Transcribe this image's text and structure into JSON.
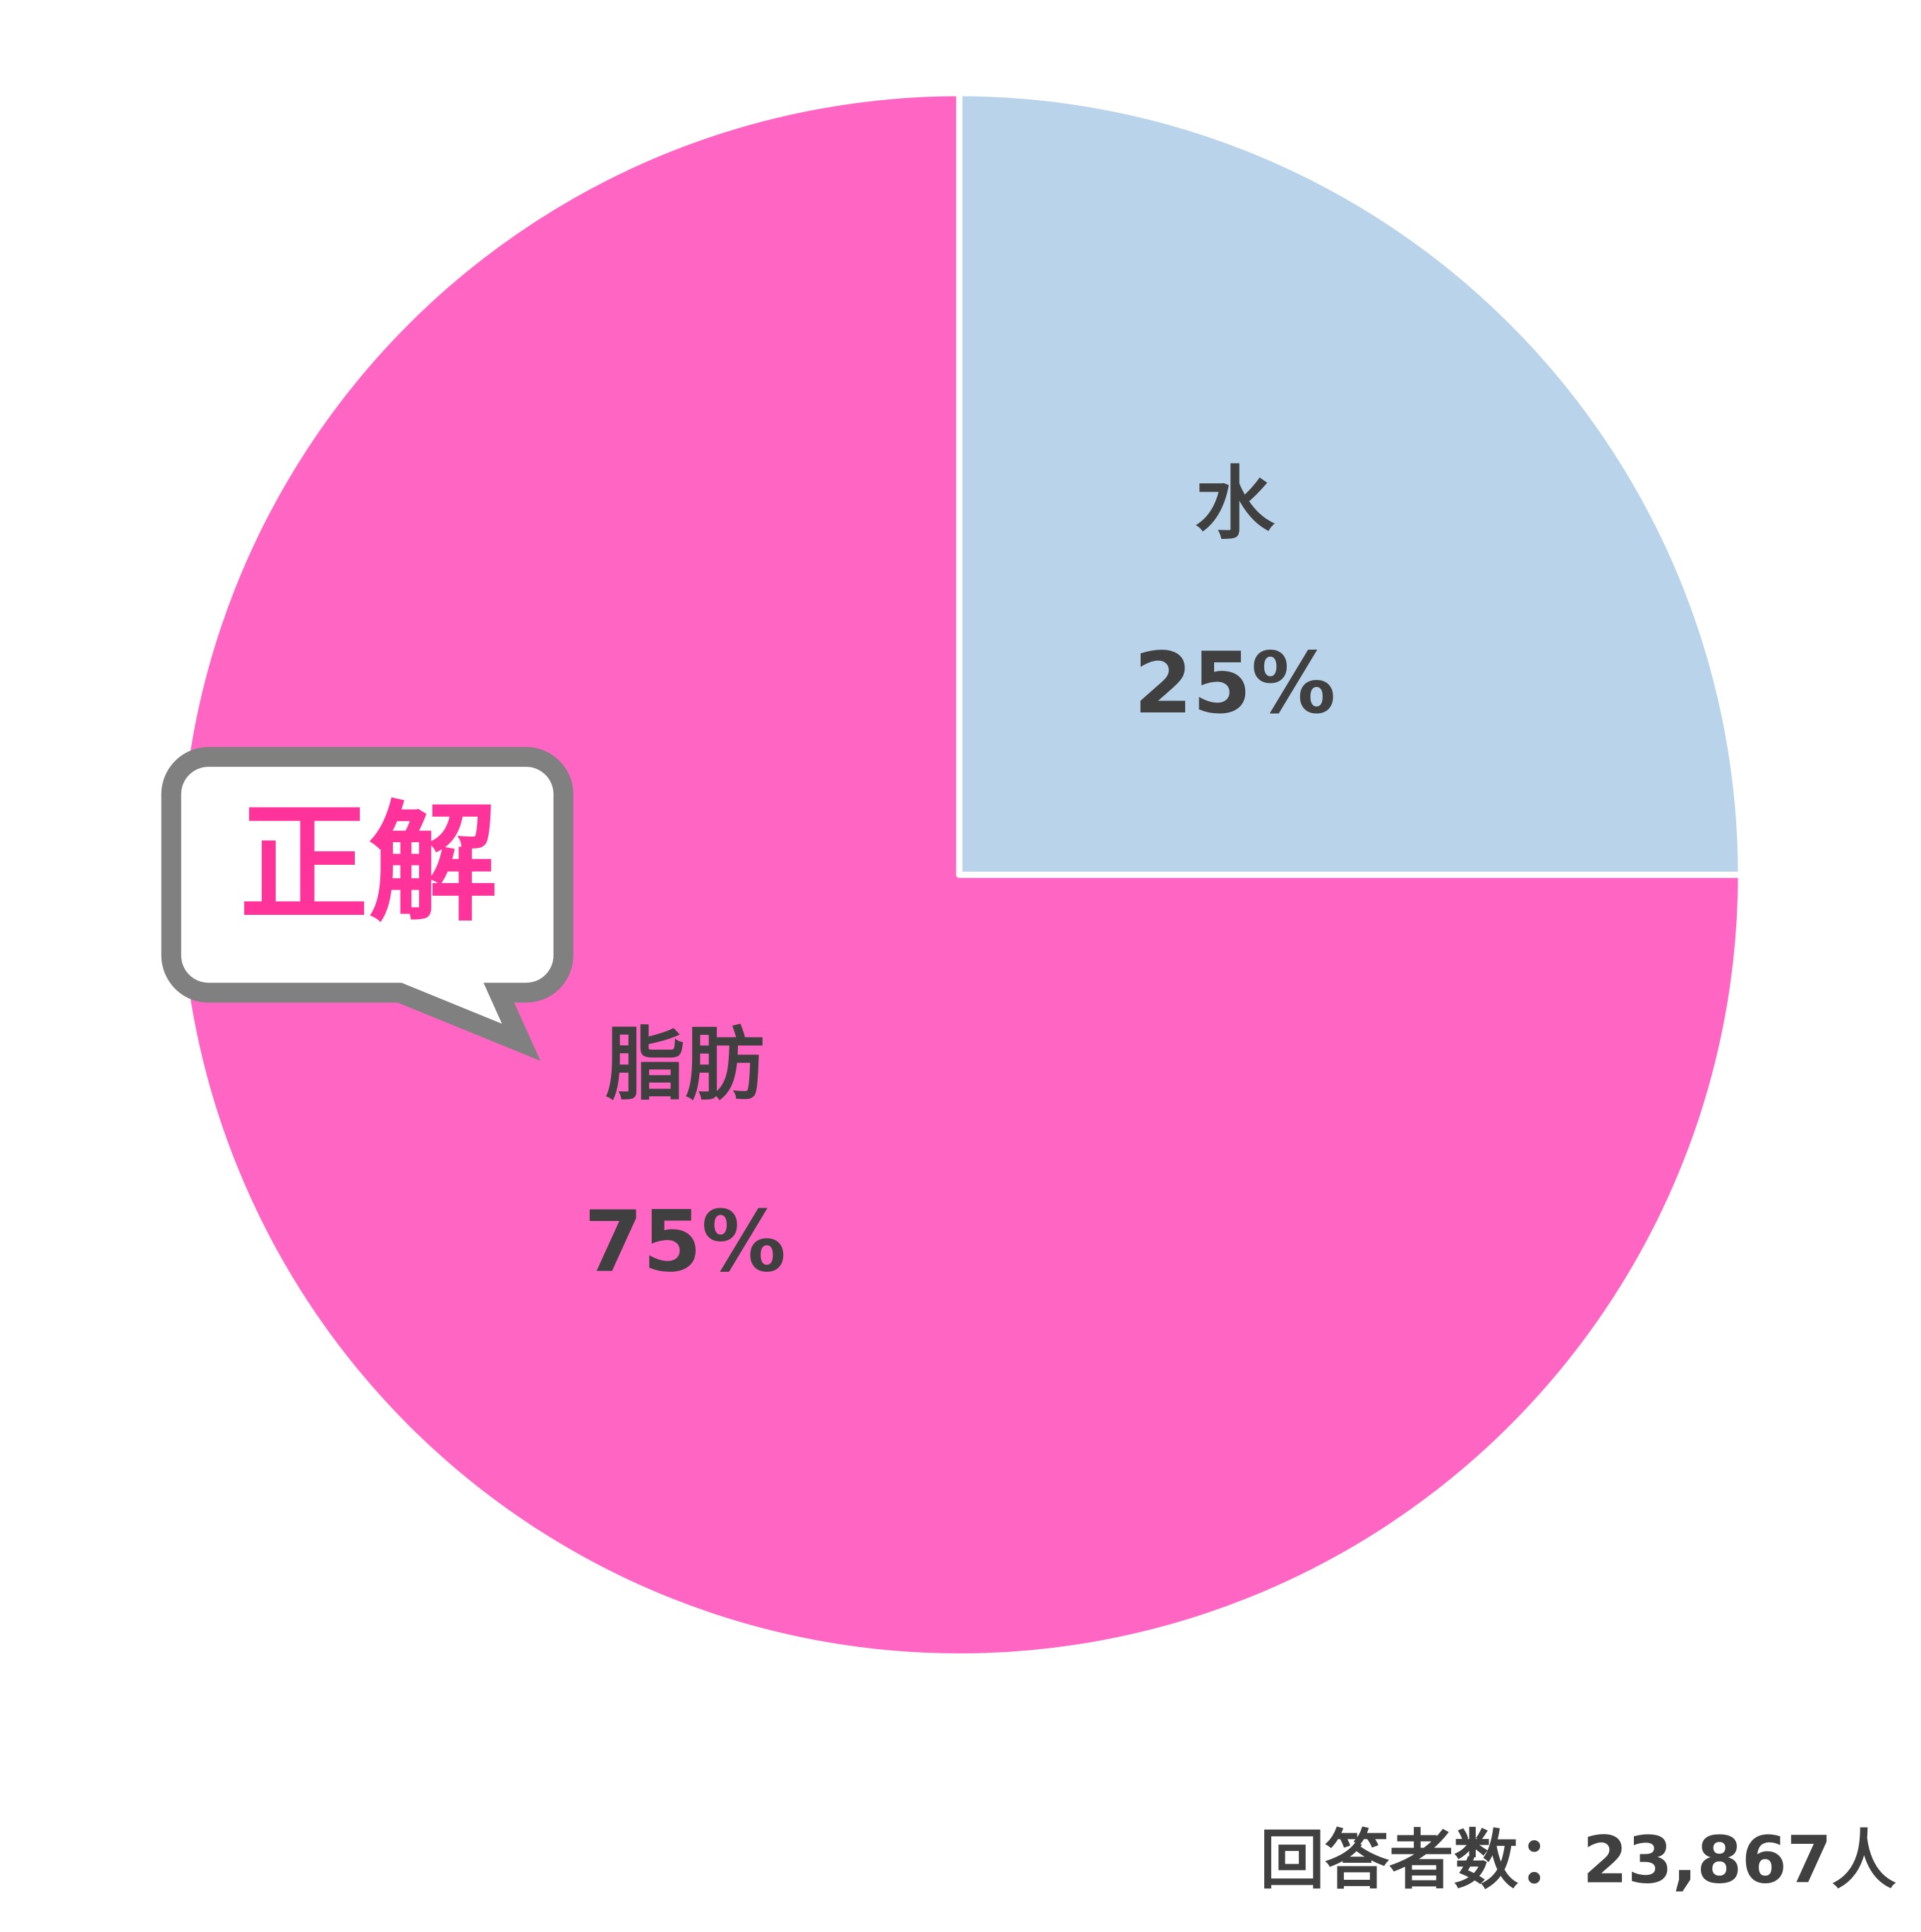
{
  "chart_data": {
    "type": "pie",
    "slices": [
      {
        "label": "水",
        "value": 25,
        "value_label": "25%",
        "color": "#b8d3ea"
      },
      {
        "label": "脂肪",
        "value": 75,
        "value_label": "75%",
        "color": "#ff66c4"
      }
    ],
    "start_angle": "12 o'clock, clockwise",
    "annotation": {
      "text": "正解",
      "points_to": "脂肪",
      "text_color": "#ff3399",
      "border_color": "#808080"
    },
    "footer": "回答者数：23,867人",
    "label_color": "#404040"
  }
}
